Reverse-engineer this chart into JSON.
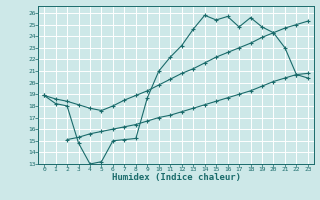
{
  "xlabel": "Humidex (Indice chaleur)",
  "bg_color": "#cde8e8",
  "grid_color": "#ffffff",
  "line_color": "#1a6b6b",
  "xlim": [
    -0.5,
    23.5
  ],
  "ylim": [
    13,
    26.6
  ],
  "yticks": [
    13,
    14,
    15,
    16,
    17,
    18,
    19,
    20,
    21,
    22,
    23,
    24,
    25,
    26
  ],
  "xticks": [
    0,
    1,
    2,
    3,
    4,
    5,
    6,
    7,
    8,
    9,
    10,
    11,
    12,
    13,
    14,
    15,
    16,
    17,
    18,
    19,
    20,
    21,
    22,
    23
  ],
  "line1_x": [
    0,
    1,
    2,
    3,
    4,
    5,
    6,
    7,
    8,
    9,
    10,
    11,
    12,
    13,
    14,
    15,
    16,
    17,
    18,
    19,
    20,
    21,
    22,
    23
  ],
  "line1_y": [
    18.9,
    18.2,
    18.0,
    14.8,
    13.0,
    13.2,
    15.0,
    15.1,
    15.2,
    18.7,
    21.0,
    22.2,
    23.2,
    24.6,
    25.8,
    25.4,
    25.7,
    24.8,
    25.6,
    24.8,
    24.3,
    23.0,
    20.7,
    20.4
  ],
  "line2_x": [
    0,
    1,
    2,
    3,
    4,
    5,
    6,
    7,
    8,
    9,
    10,
    11,
    12,
    13,
    14,
    15,
    16,
    17,
    18,
    19,
    20,
    21,
    22,
    23
  ],
  "line2_y": [
    18.9,
    18.6,
    18.4,
    18.1,
    17.8,
    17.6,
    18.0,
    18.5,
    18.9,
    19.3,
    19.8,
    20.3,
    20.8,
    21.2,
    21.7,
    22.2,
    22.6,
    23.0,
    23.4,
    23.9,
    24.3,
    24.7,
    25.0,
    25.3
  ],
  "line3_x": [
    2,
    3,
    4,
    5,
    6,
    7,
    8,
    9,
    10,
    11,
    12,
    13,
    14,
    15,
    16,
    17,
    18,
    19,
    20,
    21,
    22,
    23
  ],
  "line3_y": [
    15.1,
    15.3,
    15.6,
    15.8,
    16.0,
    16.2,
    16.4,
    16.7,
    17.0,
    17.2,
    17.5,
    17.8,
    18.1,
    18.4,
    18.7,
    19.0,
    19.3,
    19.7,
    20.1,
    20.4,
    20.7,
    20.8
  ]
}
